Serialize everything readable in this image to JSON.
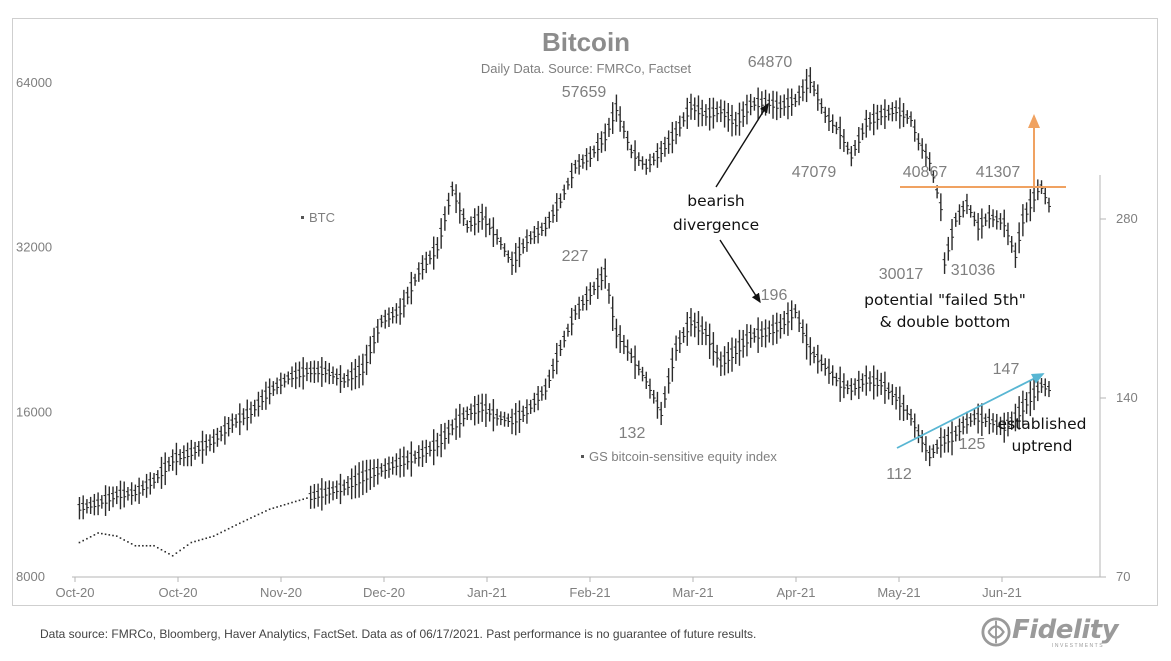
{
  "footer": {
    "text": "Data source: FMRCo, Bloomberg, Haver Analytics, FactSet. Data as of 06/17/2021. Past performance is no guarantee of future results."
  },
  "logo": {
    "text": "Fidelity",
    "subtext": "INVESTMENTS",
    "icon": "fidelity-swirl-logo"
  },
  "colors": {
    "series": "#2b2b2b",
    "axis_text": "#7f7f7f",
    "orange_annotation": "#f0a261",
    "blue_trendline": "#58b6d3"
  },
  "chart_data": {
    "type": "line",
    "title": "Bitcoin",
    "subtitle": "Daily Data. Source: FMRCo, Factset",
    "x_tick_labels": [
      "Oct-20",
      "Oct-20",
      "Nov-20",
      "Dec-20",
      "Jan-21",
      "Feb-21",
      "Mar-21",
      "Apr-21",
      "May-21",
      "Jun-21"
    ],
    "y_left": {
      "scale": "log",
      "ticks": [
        8000,
        16000,
        32000,
        64000
      ],
      "tick_labels": [
        "8000",
        "16000",
        "32000",
        "64000"
      ],
      "range": [
        8000,
        64000
      ]
    },
    "y_right": {
      "scale": "log",
      "ticks": [
        70,
        140,
        280
      ],
      "tick_labels": [
        "70",
        "140",
        "280"
      ],
      "range": [
        70,
        280
      ]
    },
    "grid": false,
    "series": [
      {
        "name": "BTC",
        "axis": "left",
        "style": "ohlc-bars",
        "points": [
          [
            "Sep-30",
            10700
          ],
          [
            "Oct-05",
            10900
          ],
          [
            "Oct-10",
            11300
          ],
          [
            "Oct-15",
            11400
          ],
          [
            "Oct-20",
            12000
          ],
          [
            "Oct-25",
            13100
          ],
          [
            "Oct-30",
            13500
          ],
          [
            "Nov-05",
            14200
          ],
          [
            "Nov-10",
            15300
          ],
          [
            "Nov-15",
            16000
          ],
          [
            "Nov-20",
            17500
          ],
          [
            "Nov-25",
            18500
          ],
          [
            "Nov-30",
            19000
          ],
          [
            "Dec-05",
            19000
          ],
          [
            "Dec-10",
            18300
          ],
          [
            "Dec-15",
            19200
          ],
          [
            "Dec-20",
            23500
          ],
          [
            "Dec-25",
            24500
          ],
          [
            "Dec-30",
            28900
          ],
          [
            "Jan-04",
            32000
          ],
          [
            "Jan-08",
            41000
          ],
          [
            "Jan-12",
            35000
          ],
          [
            "Jan-16",
            36500
          ],
          [
            "Jan-20",
            33500
          ],
          [
            "Jan-24",
            30000
          ],
          [
            "Jan-28",
            33000
          ],
          [
            "Feb-02",
            35000
          ],
          [
            "Feb-06",
            39000
          ],
          [
            "Feb-10",
            45000
          ],
          [
            "Feb-14",
            47000
          ],
          [
            "Feb-18",
            51000
          ],
          [
            "Feb-21",
            57659
          ],
          [
            "Feb-25",
            48000
          ],
          [
            "Mar-01",
            45000
          ],
          [
            "Mar-05",
            48000
          ],
          [
            "Mar-09",
            52000
          ],
          [
            "Mar-13",
            58000
          ],
          [
            "Mar-17",
            56000
          ],
          [
            "Mar-21",
            57000
          ],
          [
            "Mar-25",
            54000
          ],
          [
            "Mar-29",
            58500
          ],
          [
            "Apr-02",
            59000
          ],
          [
            "Apr-06",
            58000
          ],
          [
            "Apr-10",
            59500
          ],
          [
            "Apr-14",
            64870
          ],
          [
            "Apr-18",
            56000
          ],
          [
            "Apr-22",
            52000
          ],
          [
            "Apr-25",
            47079
          ],
          [
            "Apr-29",
            54000
          ],
          [
            "May-03",
            56000
          ],
          [
            "May-07",
            57000
          ],
          [
            "May-11",
            55000
          ],
          [
            "May-13",
            50000
          ],
          [
            "May-16",
            46000
          ],
          [
            "May-19",
            38000
          ],
          [
            "May-20",
            30017
          ],
          [
            "May-23",
            36000
          ],
          [
            "May-26",
            38500
          ],
          [
            "May-29",
            35000
          ],
          [
            "Jun-01",
            36500
          ],
          [
            "Jun-05",
            35500
          ],
          [
            "Jun-08",
            31036
          ],
          [
            "Jun-10",
            36000
          ],
          [
            "Jun-14",
            40867
          ],
          [
            "Jun-15",
            41307
          ],
          [
            "Jun-17",
            38300
          ]
        ]
      },
      {
        "name": "GS bitcoin-sensitive equity index",
        "axis": "right",
        "style": "ohlc-bars",
        "points": [
          [
            "Sep-30",
            80
          ],
          [
            "Oct-05",
            83
          ],
          [
            "Oct-10",
            82
          ],
          [
            "Oct-15",
            79
          ],
          [
            "Oct-20",
            79
          ],
          [
            "Oct-25",
            76
          ],
          [
            "Oct-30",
            80
          ],
          [
            "Nov-05",
            82
          ],
          [
            "Nov-10",
            85
          ],
          [
            "Nov-15",
            88
          ],
          [
            "Nov-20",
            91
          ],
          [
            "Nov-25",
            93
          ],
          [
            "Nov-30",
            95
          ],
          [
            "Dec-05",
            97
          ],
          [
            "Dec-10",
            99
          ],
          [
            "Dec-15",
            103
          ],
          [
            "Dec-20",
            106
          ],
          [
            "Dec-25",
            109
          ],
          [
            "Dec-30",
            112
          ],
          [
            "Jan-04",
            117
          ],
          [
            "Jan-08",
            125
          ],
          [
            "Jan-12",
            132
          ],
          [
            "Jan-16",
            135
          ],
          [
            "Jan-20",
            130
          ],
          [
            "Jan-24",
            128
          ],
          [
            "Jan-28",
            133
          ],
          [
            "Feb-02",
            145
          ],
          [
            "Feb-06",
            170
          ],
          [
            "Feb-10",
            195
          ],
          [
            "Feb-14",
            210
          ],
          [
            "Feb-18",
            227
          ],
          [
            "Feb-21",
            180
          ],
          [
            "Feb-25",
            165
          ],
          [
            "Mar-01",
            150
          ],
          [
            "Mar-05",
            132
          ],
          [
            "Mar-09",
            170
          ],
          [
            "Mar-13",
            188
          ],
          [
            "Mar-17",
            180
          ],
          [
            "Mar-21",
            160
          ],
          [
            "Mar-25",
            168
          ],
          [
            "Mar-29",
            178
          ],
          [
            "Apr-02",
            180
          ],
          [
            "Apr-06",
            185
          ],
          [
            "Apr-10",
            196
          ],
          [
            "Apr-14",
            168
          ],
          [
            "Apr-18",
            158
          ],
          [
            "Apr-22",
            148
          ],
          [
            "Apr-25",
            145
          ],
          [
            "Apr-29",
            150
          ],
          [
            "May-03",
            148
          ],
          [
            "May-07",
            140
          ],
          [
            "May-11",
            130
          ],
          [
            "May-13",
            122
          ],
          [
            "May-16",
            112
          ],
          [
            "May-19",
            118
          ],
          [
            "May-22",
            120
          ],
          [
            "May-25",
            126
          ],
          [
            "May-28",
            130
          ],
          [
            "Jun-01",
            128
          ],
          [
            "Jun-05",
            125
          ],
          [
            "Jun-08",
            130
          ],
          [
            "Jun-12",
            140
          ],
          [
            "Jun-15",
            147
          ],
          [
            "Jun-17",
            145
          ]
        ]
      }
    ],
    "value_labels": [
      "64870",
      "57659",
      "47079",
      "40867",
      "41307",
      "30017",
      "31036",
      "227",
      "196",
      "132",
      "112",
      "125",
      "147"
    ],
    "annotations": {
      "bearish_line1": "bearish",
      "bearish_line2": "divergence",
      "failed_line1": "potential \"failed 5th\"",
      "failed_line2": "& double bottom",
      "uptrend_line1": "established",
      "uptrend_line2": "uptrend"
    },
    "legend": {
      "placement": "inline"
    }
  }
}
